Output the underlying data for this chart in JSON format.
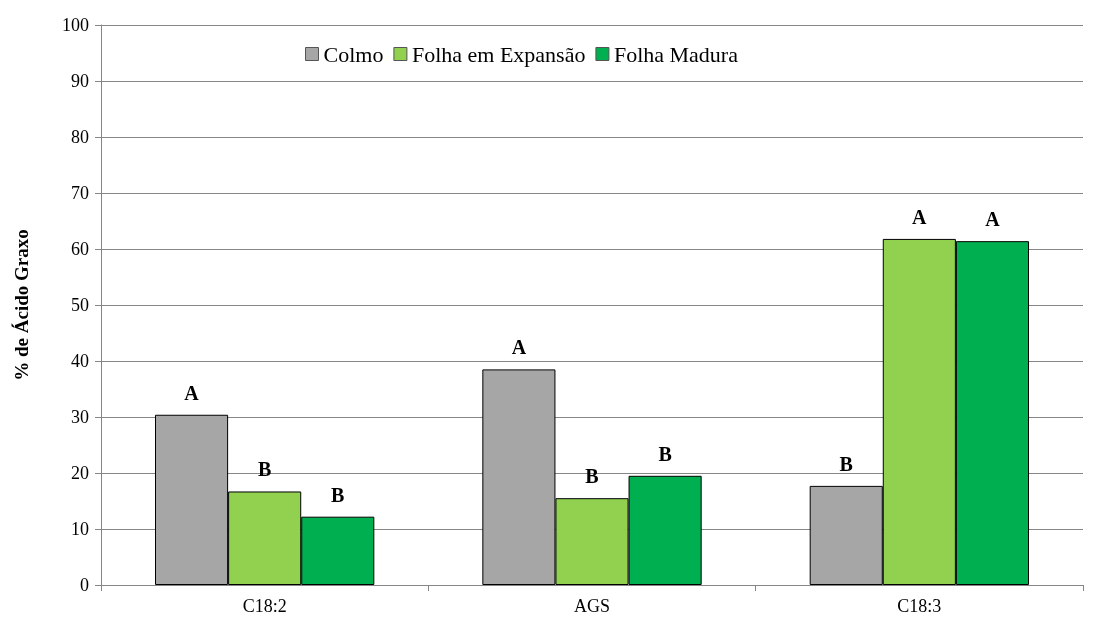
{
  "chart_data": {
    "type": "bar",
    "ylabel": "% de Ácido Graxo",
    "categories": [
      "C18:2",
      "AGS",
      "C18:3"
    ],
    "series": [
      {
        "name": "Colmo",
        "color": "#a6a6a6",
        "values": [
          30.4,
          38.5,
          17.7
        ],
        "value_labels": [
          "A",
          "A",
          "B"
        ]
      },
      {
        "name": "Folha em Expansão",
        "color": "#92d050",
        "values": [
          16.7,
          15.5,
          61.8
        ],
        "value_labels": [
          "B",
          "B",
          "A"
        ]
      },
      {
        "name": "Folha Madura",
        "color": "#00b050",
        "values": [
          12.2,
          19.5,
          61.4
        ],
        "value_labels": [
          "B",
          "B",
          "A"
        ]
      }
    ],
    "ylim": [
      0,
      100
    ],
    "yticks": [
      0,
      10,
      20,
      30,
      40,
      50,
      60,
      70,
      80,
      90,
      100
    ],
    "grid": "y",
    "legend": "top"
  }
}
